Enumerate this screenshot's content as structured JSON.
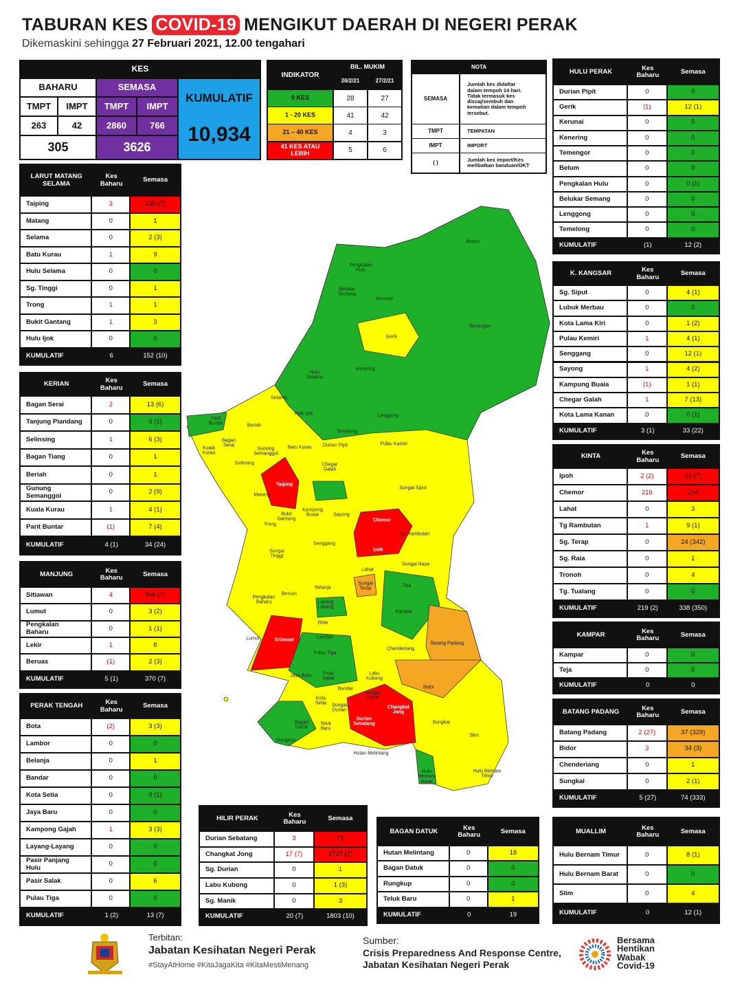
{
  "header": {
    "title_pre": "TABURAN KES",
    "title_highlight": "COVID-19",
    "title_post": "MENGIKUT DAERAH DI NEGERI PERAK",
    "subtitle_pre": "Dikemaskini sehingga",
    "subtitle_date": "27 Februari 2021, 12.00 tengahari"
  },
  "summary": {
    "kes": "KES",
    "baharu": "BAHARU",
    "semasa": "SEMASA",
    "kumulatif": "KUMULATIF",
    "tmpt": "TMPT",
    "impt": "IMPT",
    "baharu_tmpt": "263",
    "baharu_impt": "42",
    "semasa_tmpt": "2860",
    "semasa_impt": "766",
    "baharu_total": "305",
    "semasa_total": "3626",
    "kumulatif_total": "10,934"
  },
  "indikator": {
    "header": "INDIKATOR",
    "mukim": "BIL. MUKIM",
    "dates": [
      "26/2/21",
      "27/2/21"
    ],
    "rows": [
      [
        "0 KES",
        "28",
        "27",
        "g"
      ],
      [
        "1 - 20 KES",
        "41",
        "42",
        "y"
      ],
      [
        "21 – 40 KES",
        "4",
        "3",
        "o"
      ],
      [
        "41 KES ATAU\nLEBIH",
        "5",
        "6",
        "r"
      ]
    ]
  },
  "nota": {
    "header": "NOTA",
    "rows": [
      [
        "SEMASA",
        "Jumlah kes didaftar\ndalam tempoh 14 hari.\nTidak termasuk kes\ndiscaj/sembuh dan\nkematian dalam tempoh\ntersebut."
      ],
      [
        "TMPT",
        "TEMPATAN"
      ],
      [
        "IMPT",
        "IMPORT"
      ],
      [
        "( )",
        "Jumlah kes import/Kes\nmelibatkan banduan/OKT"
      ]
    ]
  },
  "districts": [
    {
      "columns": [
        "HULU PERAK",
        "Kes\nBaharu",
        "Semasa"
      ],
      "rows": [
        [
          "Durian Pipit",
          "0",
          "0",
          "g"
        ],
        [
          "Gerik",
          "(1)",
          "12 (1)",
          "y"
        ],
        [
          "Kerunai",
          "0",
          "0",
          "g"
        ],
        [
          "Kenering",
          "0",
          "0",
          "g"
        ],
        [
          "Temengor",
          "0",
          "0",
          "g"
        ],
        [
          "Belum",
          "0",
          "0",
          "g"
        ],
        [
          "Pengkalan Hulu",
          "0",
          "0 (1)",
          "g"
        ],
        [
          "Belukar Semang",
          "0",
          "0",
          "g"
        ],
        [
          "Lenggong",
          "0",
          "0",
          "g"
        ],
        [
          "Temelong",
          "0",
          "0",
          "g"
        ]
      ],
      "total": [
        "KUMULATIF",
        "(1)",
        "12 (2)"
      ]
    },
    {
      "columns": [
        "LARUT MATANG\nSELAMA",
        "Kes\nBaharu",
        "Semasa"
      ],
      "rows": [
        [
          "Taiping",
          "3",
          "135 (7)",
          "r"
        ],
        [
          "Matang",
          "0",
          "1",
          "y"
        ],
        [
          "Selama",
          "0",
          "2 (3)",
          "y"
        ],
        [
          "Batu Kurau",
          "1",
          "9",
          "y"
        ],
        [
          "Hulu Selama",
          "0",
          "0",
          "g"
        ],
        [
          "Sg. Tinggi",
          "0",
          "1",
          "y"
        ],
        [
          "Trong",
          "1",
          "1",
          "y"
        ],
        [
          "Bukit Gantang",
          "1",
          "3",
          "y"
        ],
        [
          "Hulu Ijok",
          "0",
          "0",
          "g"
        ]
      ],
      "total": [
        "KUMULATIF",
        "6",
        "152 (10)"
      ]
    },
    {
      "columns": [
        "KERIAN",
        "Kes\nBaharu",
        "Semasa"
      ],
      "rows": [
        [
          "Bagan Serai",
          "2",
          "13 (6)",
          "y"
        ],
        [
          "Tanjung Piandang",
          "0",
          "0 (1)",
          "g"
        ],
        [
          "Selinsing",
          "1",
          "6 (3)",
          "y"
        ],
        [
          "Bagan Tiang",
          "0",
          "1",
          "y"
        ],
        [
          "Beriah",
          "0",
          "1",
          "y"
        ],
        [
          "Gunung\nSemanggol",
          "0",
          "2 (9)",
          "y"
        ],
        [
          "Kuala Kurau",
          "1",
          "4 (1)",
          "y"
        ],
        [
          "Parit Buntar",
          "(1)",
          "7 (4)",
          "y"
        ]
      ],
      "total": [
        "KUMULATIF",
        "4 (1)",
        "34 (24)"
      ]
    },
    {
      "columns": [
        "MANJUNG",
        "Kes\nBaharu",
        "Semasa"
      ],
      "rows": [
        [
          "Sitiawan",
          "4",
          "356 (1)",
          "r"
        ],
        [
          "Lumut",
          "0",
          "3 (2)",
          "y"
        ],
        [
          "Pengkalan\nBaharu",
          "0",
          "1 (1)",
          "y"
        ],
        [
          "Lekir",
          "1",
          "8",
          "y"
        ],
        [
          "Beruas",
          "(1)",
          "2 (3)",
          "y"
        ]
      ],
      "total": [
        "KUMULATIF",
        "5 (1)",
        "370 (7)"
      ]
    },
    {
      "columns": [
        "PERAK TENGAH",
        "Kes\nBaharu",
        "Semasa"
      ],
      "rows": [
        [
          "Bota",
          "(2)",
          "3 (3)",
          "y"
        ],
        [
          "Lambor",
          "0",
          "0",
          "g"
        ],
        [
          "Belanja",
          "0",
          "1",
          "y"
        ],
        [
          "Bandar",
          "0",
          "0",
          "g"
        ],
        [
          "Kota Setia",
          "0",
          "0 (1)",
          "g"
        ],
        [
          "Jaya Baru",
          "0",
          "0",
          "g"
        ],
        [
          "Kampong Gajah",
          "1",
          "3 (3)",
          "y"
        ],
        [
          "Layang-Layang",
          "0",
          "0",
          "g"
        ],
        [
          "Pasir Panjang\nHulu",
          "0",
          "0",
          "g"
        ],
        [
          "Pasir Salak",
          "0",
          "6",
          "y"
        ],
        [
          "Pulau Tiga",
          "0",
          "0",
          "g"
        ]
      ],
      "total": [
        "KUMULATIF",
        "1 (2)",
        "13 (7)"
      ]
    },
    {
      "columns": [
        "K. KANGSAR",
        "Kes\nBaharu",
        "Semasa"
      ],
      "rows": [
        [
          "Sg. Siput",
          "0",
          "4 (1)",
          "y"
        ],
        [
          "Lubuk Merbau",
          "0",
          "0",
          "g"
        ],
        [
          "Kota Lama Kiri",
          "0",
          "1 (2)",
          "y"
        ],
        [
          "Pulau Kemiri",
          "1",
          "4 (1)",
          "y"
        ],
        [
          "Senggang",
          "0",
          "12 (1)",
          "y"
        ],
        [
          "Sayong",
          "1",
          "4 (2)",
          "y"
        ],
        [
          "Kampung Buaia",
          "(1)",
          "1 (1)",
          "y"
        ],
        [
          "Chegar Galah",
          "1",
          "7 (13)",
          "y"
        ],
        [
          "Kota Lama Kanan",
          "0",
          "0 (1)",
          "g"
        ]
      ],
      "total": [
        "KUMULATIF",
        "3 (1)",
        "33 (22)"
      ]
    },
    {
      "columns": [
        "KINTA",
        "Kes\nBaharu",
        "Semasa"
      ],
      "rows": [
        [
          "Ipoh",
          "2 (2)",
          "53 (7)",
          "r"
        ],
        [
          "Chemor",
          "216",
          "244",
          "r"
        ],
        [
          "Lahat",
          "0",
          "3",
          "y"
        ],
        [
          "Tg Rambutan",
          "1",
          "9 (1)",
          "y"
        ],
        [
          "Sg. Terap",
          "0",
          "24 (342)",
          "o"
        ],
        [
          "Sg. Raia",
          "0",
          "1",
          "y"
        ],
        [
          "Tronoh",
          "0",
          "4",
          "y"
        ],
        [
          "Tg. Tualang",
          "0",
          "0",
          "g"
        ]
      ],
      "total": [
        "KUMULATIF",
        "219 (2)",
        "338 (350)"
      ]
    },
    {
      "columns": [
        "KAMPAR",
        "Kes\nBaharu",
        "Semasa"
      ],
      "rows": [
        [
          "Kampar",
          "0",
          "0",
          "g"
        ],
        [
          "Teja",
          "0",
          "0",
          "g"
        ]
      ],
      "total": [
        "KUMULATIF",
        "0",
        "0"
      ]
    },
    {
      "columns": [
        "BATANG PADANG",
        "Kes\nBaharu",
        "Semasa"
      ],
      "rows": [
        [
          "Batang Padang",
          "2 (27)",
          "37 (329)",
          "o"
        ],
        [
          "Bidor",
          "3",
          "34 (3)",
          "o"
        ],
        [
          "Chenderiang",
          "0",
          "1",
          "y"
        ],
        [
          "Sungkai",
          "0",
          "2 (1)",
          "y"
        ]
      ],
      "total": [
        "KUMULATIF",
        "5 (27)",
        "74 (333)"
      ]
    },
    {
      "columns": [
        "MUALLIM",
        "Kes\nBaharu",
        "Semasa"
      ],
      "rows": [
        [
          "Hulu Bernam Timur",
          "0",
          "8 (1)",
          "y"
        ],
        [
          "Hulu Bernam Barat",
          "0",
          "0",
          "g"
        ],
        [
          "Slim",
          "0",
          "4",
          "y"
        ]
      ],
      "total": [
        "KUMULATIF",
        "0",
        "12 (1)"
      ]
    },
    {
      "columns": [
        "HILIR PERAK",
        "Kes\nBaharu",
        "Semasa"
      ],
      "rows": [
        [
          "Durian Sebatang",
          "3",
          "71",
          "r"
        ],
        [
          "Changkat Jong",
          "17 (7)",
          "1727 (7)",
          "r"
        ],
        [
          "Sg. Durian",
          "0",
          "1",
          "y"
        ],
        [
          "Labu Kubong",
          "0",
          "1 (3)",
          "y"
        ],
        [
          "Sg. Manik",
          "0",
          "3",
          "y"
        ]
      ],
      "total": [
        "KUMULATIF",
        "20 (7)",
        "1803 (10)"
      ]
    },
    {
      "columns": [
        "BAGAN DATUK",
        "Kes\nBaharu",
        "Semasa"
      ],
      "rows": [
        [
          "Hutan Melintang",
          "0",
          "18",
          "y"
        ],
        [
          "Bagan Datuk",
          "0",
          "0",
          "g"
        ],
        [
          "Rungkup",
          "0",
          "0",
          "g"
        ],
        [
          "Teluk Baru",
          "0",
          "1",
          "y"
        ]
      ],
      "total": [
        "KUMULATIF",
        "0",
        "19"
      ]
    }
  ],
  "map": {
    "labels": [
      "Belum",
      "Pengkalan\nHulu",
      "Belukar\nSemang",
      "Kerunai",
      "Temengor",
      "Gerik",
      "Kenering",
      "Hulu\nSelama",
      "Selama",
      "Hulu Ijok",
      "Lenggong",
      "Temelong",
      "Beriah",
      "Parit\nBuntar",
      "Bagan\nSerai",
      "Gunong\nSemanggol",
      "Batu Kurau",
      "Durian Pipit",
      "Pulau Kamiri",
      "Kuala\nKurau",
      "Selinsing",
      "Chegar\nGalah",
      "Taiping",
      "Sungai Siput",
      "Matang",
      "Bukit\nGantang",
      "Kampong\nBuaia",
      "Sayong",
      "Trong",
      "Chemor",
      "Tg. Rambutan",
      "Senggang",
      "Ipoh",
      "Sungai\nTinggi",
      "Sungai Raya",
      "Lahat",
      "Sungai\nTerap",
      "Teja",
      "Belanja",
      "Pengkalan\nBaharu",
      "Beruas",
      "Layang\nLayang",
      "Kampar",
      "Bota",
      "Batang Padang",
      "Lumut",
      "Sitiawan",
      "Lambor",
      "Chenderiang",
      "Pulau Tiga",
      "Pasir\nSalak",
      "Jaya Baru",
      "Labu\nKubong",
      "Bidor",
      "Bandar",
      "Sungai\nManik",
      "Changkat\nJong",
      "Kota\nSetia",
      "Sungai\nDurian",
      "Durian\nSebatang",
      "Sungkai",
      "Bagan\nDatuk",
      "Teluk\nBaru",
      "Slim",
      "Rungkup",
      "Hutan Melintang",
      "Hulu\nBernam\nBarat",
      "Hulu Bernam\nTimor"
    ]
  },
  "footer": {
    "terbitan": "Terbitan:",
    "publisher": "Jabatan Kesihatan Negeri Perak",
    "hashtags": "#StayAtHome #KitaJagaKita #KitaMestiMenang",
    "sumber": "Sumber:",
    "source": "Crisis Preparedness And Response Centre,\nJabatan Kesihatan Negeri Perak",
    "campaign": "Bersama\nHentikan\nWabak\nCovid-19"
  }
}
